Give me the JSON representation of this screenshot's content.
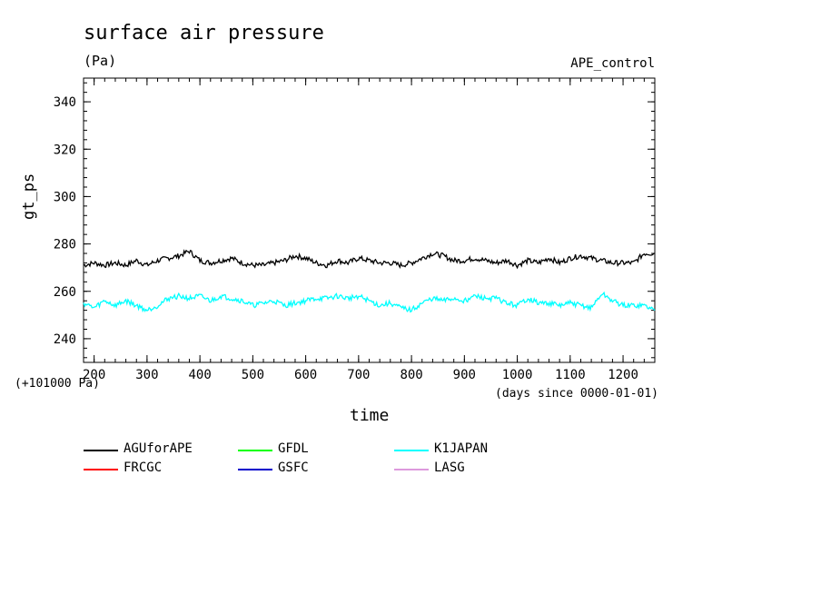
{
  "chart_data": {
    "type": "line",
    "title": "surface air pressure",
    "units": "(Pa)",
    "experiment": "APE_control",
    "ylabel": "gt_ps",
    "y_offset_label": "(+101000 Pa)",
    "xlabel": "time",
    "x_units": "(days since 0000-01-01)",
    "xlim": [
      180,
      1260
    ],
    "ylim": [
      230,
      350
    ],
    "x_ticks": [
      200,
      300,
      400,
      500,
      600,
      700,
      800,
      900,
      1000,
      1100,
      1200
    ],
    "y_ticks": [
      240,
      260,
      280,
      300,
      320,
      340
    ],
    "series": [
      {
        "name": "AGUforAPE",
        "color": "#000000",
        "x": [
          180,
          200,
          220,
          240,
          260,
          280,
          300,
          320,
          340,
          360,
          380,
          400,
          420,
          440,
          460,
          480,
          500,
          520,
          540,
          560,
          580,
          600,
          620,
          640,
          660,
          680,
          700,
          720,
          740,
          760,
          780,
          800,
          820,
          840,
          860,
          880,
          900,
          920,
          940,
          960,
          980,
          1000,
          1020,
          1040,
          1060,
          1080,
          1100,
          1120,
          1140,
          1160,
          1180,
          1200,
          1220,
          1240,
          1260
        ],
        "values": [
          271,
          272,
          271,
          272,
          271,
          273,
          271,
          273,
          274,
          275,
          277,
          273,
          272,
          273,
          274,
          272,
          271,
          271,
          272,
          273,
          275,
          274,
          272,
          271,
          273,
          272,
          274,
          273,
          272,
          272,
          271,
          272,
          274,
          276,
          275,
          273,
          273,
          274,
          273,
          272,
          273,
          271,
          273,
          272,
          274,
          272,
          274,
          275,
          274,
          273,
          272,
          272,
          272,
          276,
          276
        ]
      },
      {
        "name": "FRCGC",
        "color": "#ff0000",
        "x": [],
        "values": []
      },
      {
        "name": "GFDL",
        "color": "#00ff00",
        "x": [],
        "values": []
      },
      {
        "name": "GSFC",
        "color": "#0000cc",
        "x": [],
        "values": []
      },
      {
        "name": "K1JAPAN",
        "color": "#00ffff",
        "x": [
          180,
          200,
          220,
          240,
          260,
          280,
          300,
          320,
          340,
          360,
          380,
          400,
          420,
          440,
          460,
          480,
          500,
          520,
          540,
          560,
          580,
          600,
          620,
          640,
          660,
          680,
          700,
          720,
          740,
          760,
          780,
          800,
          820,
          840,
          860,
          880,
          900,
          920,
          940,
          960,
          980,
          1000,
          1020,
          1040,
          1060,
          1080,
          1100,
          1120,
          1140,
          1160,
          1180,
          1200,
          1220,
          1240,
          1260
        ],
        "values": [
          255,
          253,
          256,
          254,
          256,
          254,
          252,
          254,
          257,
          258,
          257,
          258,
          256,
          258,
          257,
          256,
          254,
          255,
          256,
          254,
          255,
          256,
          257,
          257,
          258,
          257,
          258,
          256,
          254,
          255,
          253,
          252,
          255,
          257,
          256,
          257,
          256,
          258,
          257,
          257,
          255,
          254,
          257,
          255,
          255,
          254,
          255,
          254,
          253,
          259,
          256,
          254,
          254,
          254,
          252
        ]
      },
      {
        "name": "LASG",
        "color": "#dd99dd",
        "x": [],
        "values": []
      }
    ],
    "legend_position": "bottom"
  }
}
